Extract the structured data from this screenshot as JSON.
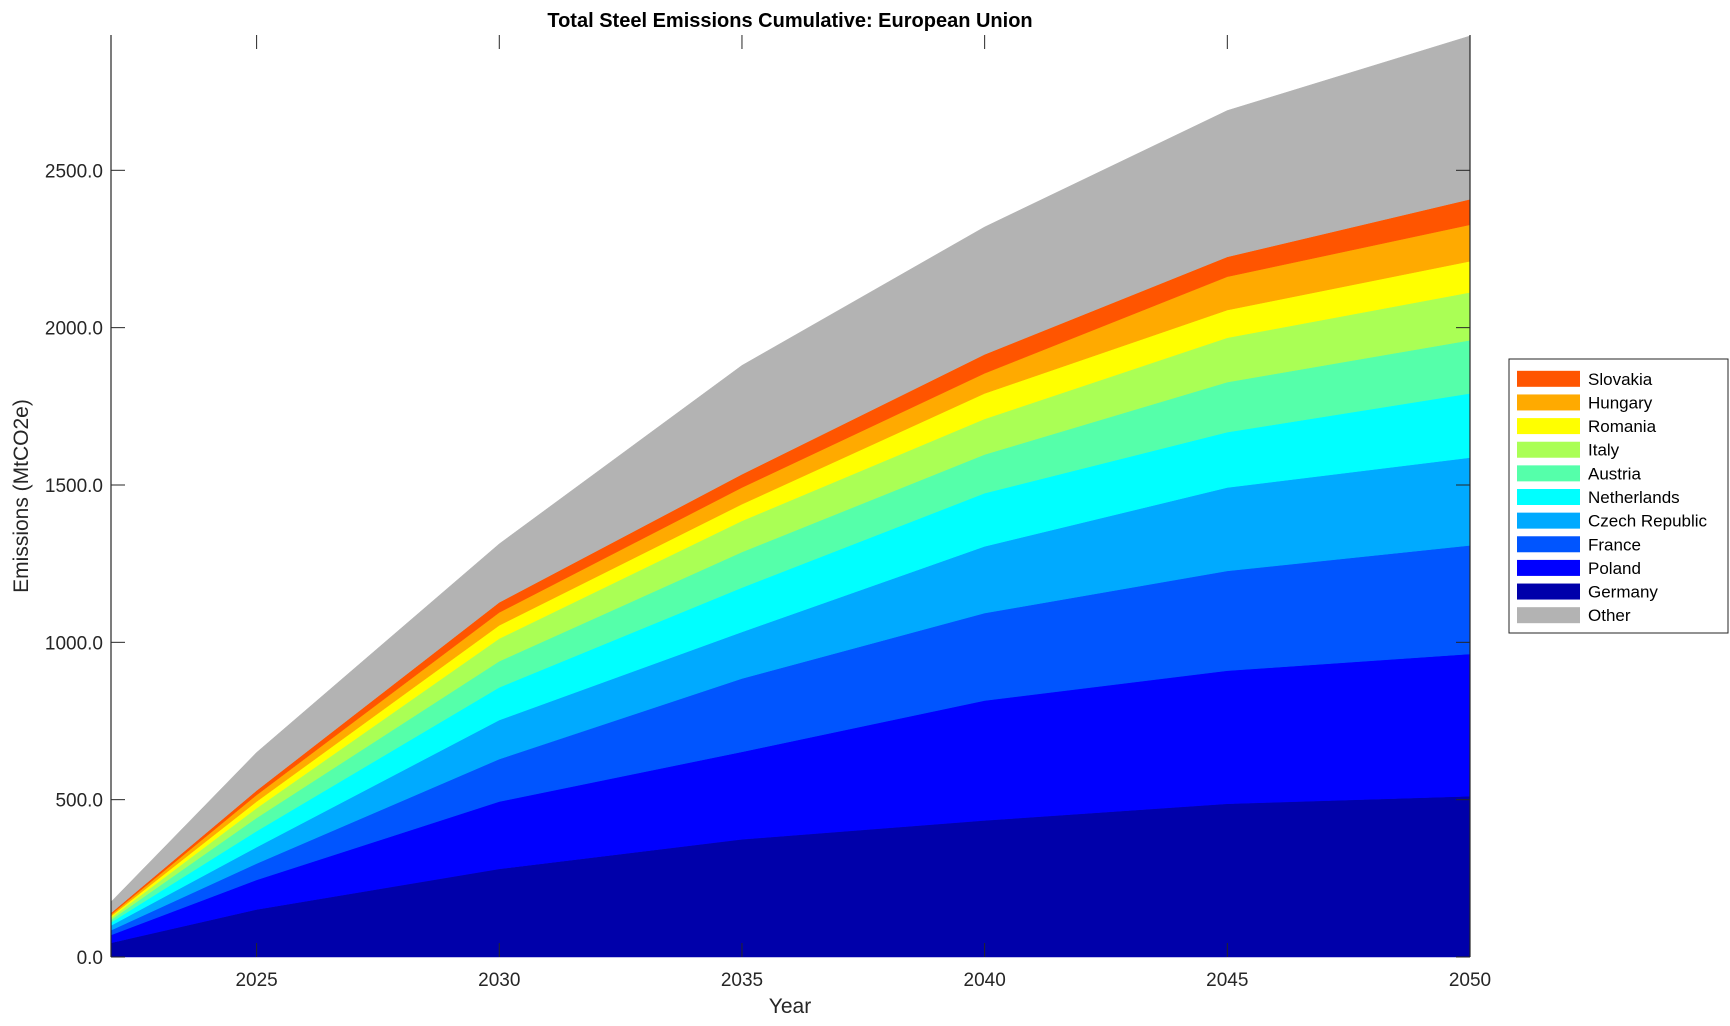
{
  "chart_data": {
    "type": "area",
    "stacked": true,
    "title": "Total Steel Emissions Cumulative: European Union",
    "xlabel": "Year",
    "ylabel": "Emissions (MtCO2e)",
    "xlim": [
      2022,
      2050
    ],
    "ylim": [
      0,
      2930
    ],
    "xticks": [
      2025,
      2030,
      2035,
      2040,
      2045,
      2050
    ],
    "xtick_labels": [
      "2025",
      "2030",
      "2035",
      "2040",
      "2045",
      "2050"
    ],
    "yticks": [
      0,
      500,
      1000,
      1500,
      2000,
      2500
    ],
    "ytick_labels": [
      "0.0",
      "500.0",
      "1000.0",
      "1500.0",
      "2000.0",
      "2500.0"
    ],
    "grid": false,
    "legend_position": "outside-right",
    "x": [
      2022,
      2025,
      2030,
      2035,
      2040,
      2045,
      2050
    ],
    "series": [
      {
        "name": "Germany",
        "color": "#0000AA",
        "values": [
          45,
          151,
          280,
          374,
          434,
          487,
          511
        ]
      },
      {
        "name": "Poland",
        "color": "#0000FF",
        "values": [
          25,
          94,
          214,
          278,
          381,
          423,
          452
        ]
      },
      {
        "name": "France",
        "color": "#0055FF",
        "values": [
          15,
          52,
          135,
          233,
          278,
          317,
          345
        ]
      },
      {
        "name": "Czech Republic",
        "color": "#00AAFF",
        "values": [
          15,
          52,
          124,
          148,
          212,
          265,
          279
        ]
      },
      {
        "name": "Netherlands",
        "color": "#00FFFF",
        "values": [
          10,
          51,
          104,
          141,
          169,
          176,
          204
        ]
      },
      {
        "name": "Austria",
        "color": "#55FFAA",
        "values": [
          8,
          42,
          83,
          113,
          123,
          159,
          169
        ]
      },
      {
        "name": "Italy",
        "color": "#AAFF55",
        "values": [
          7,
          31,
          72,
          99,
          113,
          141,
          152
        ]
      },
      {
        "name": "Romania",
        "color": "#FFFF00",
        "values": [
          5,
          21,
          42,
          53,
          81,
          88,
          99
        ]
      },
      {
        "name": "Hungary",
        "color": "#FFAA00",
        "values": [
          5,
          21,
          41,
          53,
          64,
          106,
          116
        ]
      },
      {
        "name": "Slovakia",
        "color": "#FF5500",
        "values": [
          5,
          14,
          32,
          42,
          60,
          63,
          81
        ]
      },
      {
        "name": "Other",
        "color": "#B3B3B3",
        "values": [
          35,
          121,
          186,
          346,
          405,
          465,
          519
        ]
      }
    ],
    "legend_order": [
      "Slovakia",
      "Hungary",
      "Romania",
      "Italy",
      "Austria",
      "Netherlands",
      "Czech Republic",
      "France",
      "Poland",
      "Germany",
      "Other"
    ]
  }
}
